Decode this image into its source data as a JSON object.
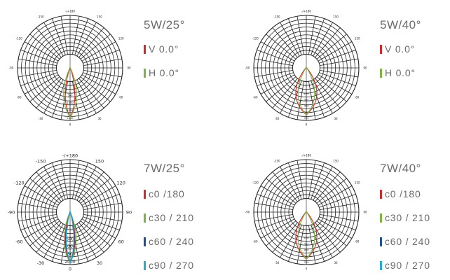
{
  "chart_data": [
    {
      "type": "polar",
      "title": "5W/25°",
      "angle_labels": [
        "-/+180",
        "150",
        "120",
        "90",
        "60",
        "30",
        "0",
        "-30",
        "-60",
        "-90",
        "-120",
        "-150"
      ],
      "radial_ticks": [
        "500",
        "1000",
        "1500",
        "2000"
      ],
      "series": [
        {
          "name": "V 0.0°",
          "color": "#d62828",
          "half_width_deg": 9,
          "reach": 0.95
        },
        {
          "name": "H 0.0°",
          "color": "#7cb342",
          "half_width_deg": 12,
          "reach": 0.95
        }
      ]
    },
    {
      "type": "polar",
      "title": "5W/40°",
      "angle_labels": [
        "-/+180",
        "150",
        "120",
        "90",
        "60",
        "30",
        "0",
        "-30",
        "-60",
        "-90",
        "-120",
        "-150"
      ],
      "radial_ticks": [
        "150",
        "300",
        "450",
        "600",
        "750"
      ],
      "series": [
        {
          "name": "V 0.0°",
          "color": "#d62828",
          "half_width_deg": 20,
          "reach": 0.88
        },
        {
          "name": "H 0.0°",
          "color": "#7cb342",
          "half_width_deg": 16,
          "reach": 0.88
        }
      ]
    },
    {
      "type": "polar",
      "title": "7W/25°",
      "angle_labels": [
        "-/+180",
        "150",
        "120",
        "90",
        "60",
        "30",
        "0",
        "-30",
        "-60",
        "-90",
        "-120",
        "-150"
      ],
      "radial_ticks": [
        "500",
        "1000",
        "1500",
        "2000"
      ],
      "series": [
        {
          "name": "c0   /180",
          "color": "#d62828",
          "half_width_deg": 9,
          "reach": 0.97
        },
        {
          "name": "c30 / 210",
          "color": "#7cb342",
          "half_width_deg": 11,
          "reach": 0.97
        },
        {
          "name": "c60 / 240",
          "color": "#1f4e9c",
          "half_width_deg": 8,
          "reach": 0.97
        },
        {
          "name": "c90 / 270",
          "color": "#29a9d6",
          "half_width_deg": 7,
          "reach": 0.97
        }
      ]
    },
    {
      "type": "polar",
      "title": "7W/40°",
      "angle_labels": [
        "-/+180",
        "150",
        "120",
        "90",
        "60",
        "30",
        "0",
        "-30",
        "-60",
        "-90",
        "-120",
        "-150"
      ],
      "radial_ticks": [
        "150",
        "300",
        "450",
        "600",
        "750"
      ],
      "series": [
        {
          "name": "c0   /180",
          "color": "#d62828",
          "half_width_deg": 20,
          "reach": 0.88
        },
        {
          "name": "c30 / 210",
          "color": "#7cb342",
          "half_width_deg": 16,
          "reach": 0.88
        },
        {
          "name": "c60 / 240",
          "color": "#1f4e9c",
          "half_width_deg": 0,
          "reach": 0
        },
        {
          "name": "c90 / 270",
          "color": "#29a9d6",
          "half_width_deg": 0,
          "reach": 0
        }
      ]
    }
  ]
}
